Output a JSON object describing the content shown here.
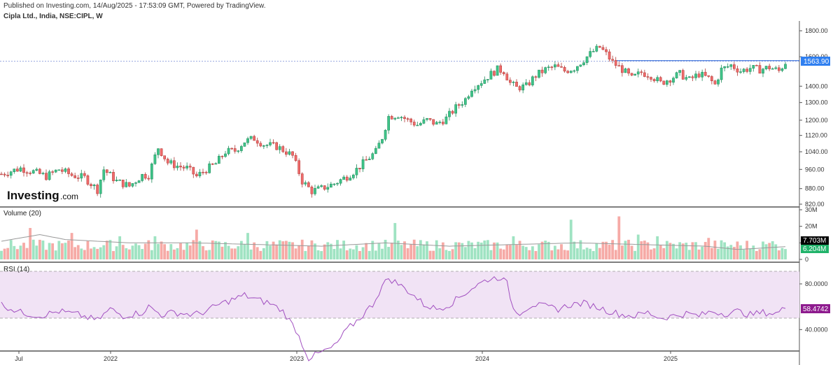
{
  "header": {
    "published": "Published on Investing.com, 14/Aug/2025 - 17:53:09 GMT, Powered by TradingView.",
    "symbol": "Cipla Ltd., India, NSE:CIPL, W"
  },
  "logo": {
    "main": "Investing",
    "suffix": ".com"
  },
  "colors": {
    "up": "#26a69a",
    "up_fill": "#3fc489",
    "down": "#d9534f",
    "down_fill": "#ef6b6b",
    "vol_up": "#9fe3c2",
    "vol_down": "#f6aaa6",
    "rsi": "#a14fc0",
    "rsi_band": "#f1e3f5",
    "price_badge": "#2f7ff0",
    "vol_badge_black": "#000000",
    "vol_badge_green": "#21b36a",
    "rsi_badge": "#8e1b8e"
  },
  "chart_data": [
    {
      "type": "candlestick",
      "title": "Cipla Ltd., India, NSE:CIPL, W",
      "x_ticks": [
        "Jul",
        "2022",
        "2023",
        "2024",
        "2025"
      ],
      "y_ticks": [
        "1800.00",
        "1600.00",
        "1400.00",
        "1300.00",
        "1200.00",
        "1120.00",
        "1040.00",
        "960.00",
        "880.00",
        "820.00"
      ],
      "y_ticks_values": [
        1800,
        1600,
        1400,
        1300,
        1200,
        1120,
        1040,
        960,
        880,
        820
      ],
      "log_scale": true,
      "last_price": "1563.90",
      "last_price_value": 1563.9,
      "horizontal_line_value": 1568,
      "anchors": [
        [
          0,
          940
        ],
        [
          6,
          965
        ],
        [
          10,
          950
        ],
        [
          14,
          930
        ],
        [
          18,
          960
        ],
        [
          22,
          935
        ],
        [
          26,
          925
        ],
        [
          30,
          875
        ],
        [
          32,
          960
        ],
        [
          36,
          910
        ],
        [
          40,
          890
        ],
        [
          44,
          935
        ],
        [
          46,
          935
        ],
        [
          49,
          1060
        ],
        [
          52,
          990
        ],
        [
          55,
          975
        ],
        [
          58,
          965
        ],
        [
          61,
          930
        ],
        [
          64,
          960
        ],
        [
          67,
          985
        ],
        [
          70,
          1040
        ],
        [
          73,
          1045
        ],
        [
          76,
          1090
        ],
        [
          79,
          1105
        ],
        [
          82,
          1075
        ],
        [
          86,
          1065
        ],
        [
          89,
          1040
        ],
        [
          91,
          1020
        ],
        [
          94,
          910
        ],
        [
          97,
          870
        ],
        [
          100,
          880
        ],
        [
          104,
          900
        ],
        [
          108,
          930
        ],
        [
          111,
          960
        ],
        [
          114,
          1000
        ],
        [
          117,
          1040
        ],
        [
          119,
          1110
        ],
        [
          121,
          1220
        ],
        [
          124,
          1230
        ],
        [
          127,
          1200
        ],
        [
          130,
          1175
        ],
        [
          133,
          1200
        ],
        [
          136,
          1180
        ],
        [
          139,
          1210
        ],
        [
          142,
          1270
        ],
        [
          145,
          1320
        ],
        [
          147,
          1390
        ],
        [
          150,
          1430
        ],
        [
          153,
          1480
        ],
        [
          155,
          1510
        ],
        [
          157,
          1500
        ],
        [
          159,
          1420
        ],
        [
          161,
          1390
        ],
        [
          164,
          1400
        ],
        [
          167,
          1470
        ],
        [
          170,
          1510
        ],
        [
          173,
          1530
        ],
        [
          176,
          1500
        ],
        [
          179,
          1520
        ],
        [
          182,
          1580
        ],
        [
          185,
          1640
        ],
        [
          187,
          1670
        ],
        [
          189,
          1620
        ],
        [
          191,
          1560
        ],
        [
          194,
          1510
        ],
        [
          197,
          1450
        ],
        [
          200,
          1490
        ],
        [
          203,
          1470
        ],
        [
          206,
          1420
        ],
        [
          209,
          1450
        ],
        [
          212,
          1480
        ],
        [
          215,
          1440
        ],
        [
          218,
          1480
        ],
        [
          221,
          1450
        ],
        [
          223,
          1410
        ],
        [
          225,
          1510
        ],
        [
          228,
          1540
        ],
        [
          231,
          1500
        ],
        [
          234,
          1520
        ],
        [
          237,
          1510
        ],
        [
          240,
          1525
        ],
        [
          243,
          1500
        ],
        [
          245,
          1560
        ]
      ],
      "n_candles": 246
    },
    {
      "type": "bar",
      "title": "Volume (20)",
      "y_ticks": [
        "30M",
        "20M",
        "10M",
        "0"
      ],
      "y_ticks_values": [
        30,
        20,
        10,
        0
      ],
      "ylim": [
        0,
        30
      ],
      "volume_ma_last": "7.703M",
      "volume_last": "6.204M",
      "spikes": [
        [
          9,
          19
        ],
        [
          22,
          16
        ],
        [
          37,
          14
        ],
        [
          48,
          14
        ],
        [
          61,
          18
        ],
        [
          77,
          16
        ],
        [
          123,
          22
        ],
        [
          160,
          14
        ],
        [
          178,
          24
        ],
        [
          193,
          26
        ],
        [
          199,
          15
        ],
        [
          205,
          14
        ],
        [
          221,
          13
        ],
        [
          241,
          11
        ]
      ],
      "ma_anchors": [
        [
          0,
          11
        ],
        [
          12,
          15
        ],
        [
          20,
          12
        ],
        [
          40,
          10
        ],
        [
          60,
          10
        ],
        [
          80,
          9
        ],
        [
          100,
          8
        ],
        [
          110,
          9
        ],
        [
          120,
          10
        ],
        [
          130,
          9
        ],
        [
          140,
          8
        ],
        [
          160,
          9
        ],
        [
          180,
          10
        ],
        [
          200,
          9
        ],
        [
          220,
          8
        ],
        [
          230,
          6
        ],
        [
          245,
          7.7
        ]
      ]
    },
    {
      "type": "line",
      "title": "RSI (14)",
      "y_ticks": [
        "80.0000",
        "40.0000"
      ],
      "y_ticks_values": [
        80,
        40
      ],
      "ylim": [
        0,
        100
      ],
      "band": [
        50,
        100
      ],
      "last_value": "58.4742",
      "anchors": [
        [
          0,
          62
        ],
        [
          6,
          55
        ],
        [
          12,
          52
        ],
        [
          18,
          56
        ],
        [
          24,
          53
        ],
        [
          30,
          48
        ],
        [
          34,
          58
        ],
        [
          38,
          52
        ],
        [
          44,
          55
        ],
        [
          46,
          60
        ],
        [
          50,
          53
        ],
        [
          54,
          55
        ],
        [
          60,
          53
        ],
        [
          64,
          56
        ],
        [
          68,
          62
        ],
        [
          72,
          66
        ],
        [
          76,
          70
        ],
        [
          80,
          66
        ],
        [
          84,
          63
        ],
        [
          88,
          56
        ],
        [
          92,
          40
        ],
        [
          96,
          15
        ],
        [
          100,
          20
        ],
        [
          104,
          25
        ],
        [
          108,
          40
        ],
        [
          112,
          50
        ],
        [
          116,
          62
        ],
        [
          119,
          78
        ],
        [
          121,
          85
        ],
        [
          124,
          80
        ],
        [
          128,
          72
        ],
        [
          132,
          62
        ],
        [
          136,
          58
        ],
        [
          140,
          62
        ],
        [
          144,
          70
        ],
        [
          148,
          78
        ],
        [
          152,
          84
        ],
        [
          156,
          86
        ],
        [
          158,
          80
        ],
        [
          160,
          58
        ],
        [
          162,
          55
        ],
        [
          166,
          62
        ],
        [
          170,
          60
        ],
        [
          174,
          58
        ],
        [
          178,
          62
        ],
        [
          182,
          63
        ],
        [
          186,
          60
        ],
        [
          190,
          56
        ],
        [
          194,
          53
        ],
        [
          198,
          52
        ],
        [
          202,
          55
        ],
        [
          206,
          50
        ],
        [
          210,
          52
        ],
        [
          214,
          54
        ],
        [
          218,
          52
        ],
        [
          222,
          56
        ],
        [
          226,
          54
        ],
        [
          230,
          56
        ],
        [
          234,
          53
        ],
        [
          238,
          55
        ],
        [
          242,
          54
        ],
        [
          245,
          58.5
        ]
      ]
    }
  ]
}
